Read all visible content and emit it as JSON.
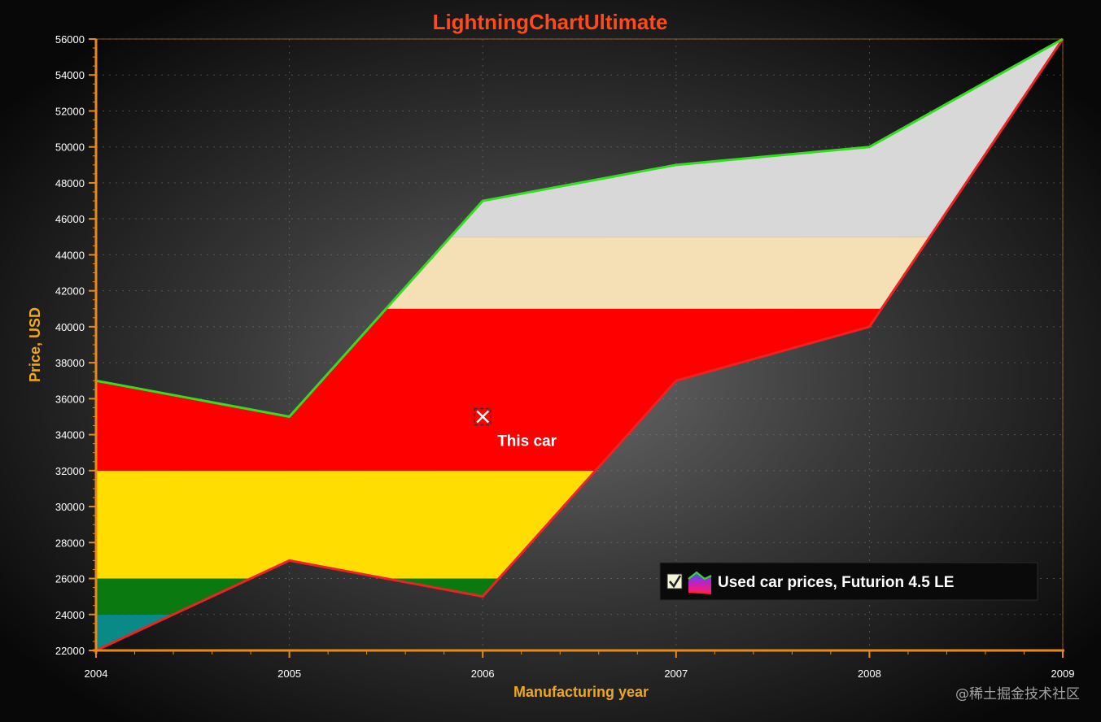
{
  "chart_data": {
    "type": "area",
    "title": "LightningChartUltimate",
    "xlabel": "Manufacturing year",
    "ylabel": "Price, USD",
    "xlim": [
      2004,
      2009
    ],
    "ylim": [
      22000,
      56000
    ],
    "x_ticks": [
      "2004",
      "2005",
      "2006",
      "2007",
      "2008",
      "2009"
    ],
    "y_ticks": [
      "22000",
      "24000",
      "26000",
      "28000",
      "30000",
      "32000",
      "34000",
      "36000",
      "38000",
      "40000",
      "42000",
      "44000",
      "46000",
      "48000",
      "50000",
      "52000",
      "54000",
      "56000"
    ],
    "grid": true,
    "series": [
      {
        "name": "Used car prices, Futurion 4.5 LE",
        "x": [
          2004,
          2005,
          2006,
          2007,
          2008,
          2009
        ],
        "high": [
          37000,
          35000,
          47000,
          49000,
          50000,
          56000
        ],
        "low": [
          22000,
          27000,
          25000,
          37000,
          40000,
          56000
        ],
        "high_color": "#33dd22",
        "low_color": "#ee2222"
      }
    ],
    "bands": [
      {
        "from": 22000,
        "to": 24000,
        "color": "#0a8a86"
      },
      {
        "from": 24000,
        "to": 26000,
        "color": "#0a7a10"
      },
      {
        "from": 26000,
        "to": 32000,
        "color": "#ffdd00"
      },
      {
        "from": 32000,
        "to": 41000,
        "color": "#ff0000"
      },
      {
        "from": 41000,
        "to": 45000,
        "color": "#f5dfb5"
      },
      {
        "from": 45000,
        "to": 56000,
        "color": "#d8d8d8"
      }
    ],
    "annotation": {
      "x": 2006,
      "y": 35000,
      "text": "This car"
    },
    "legend": {
      "placement": "bottom-right",
      "label": "Used car prices, Futurion 4.5 LE",
      "checked": true
    }
  },
  "colors": {
    "title": "#ff4a1a",
    "axis_title": "#f0a818",
    "axis": "#e88a1a",
    "tick_label": "#ffffff"
  },
  "watermark": "@稀土掘金技术社区"
}
